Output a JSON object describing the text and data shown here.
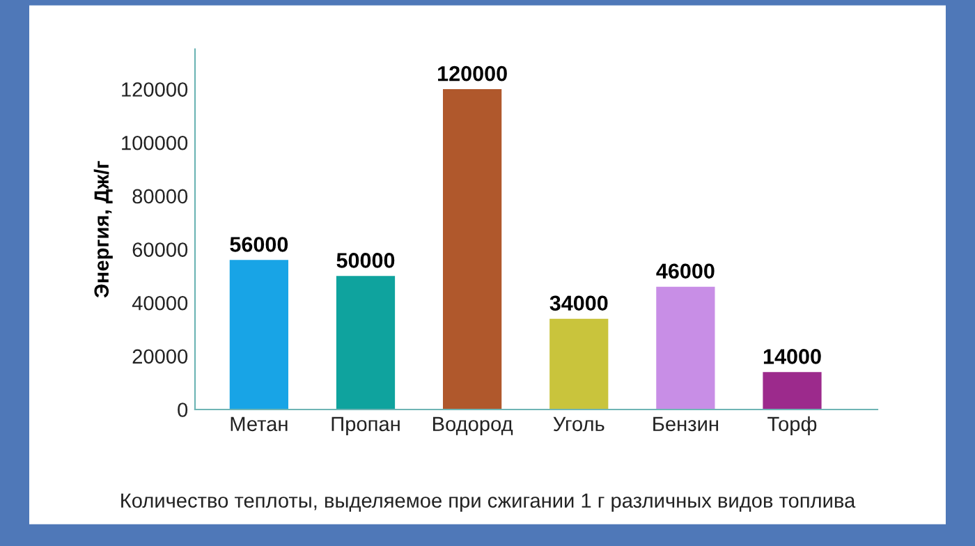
{
  "chart_data": {
    "type": "bar",
    "ylabel": "Энергия, Дж/г",
    "categories": [
      "Метан",
      "Пропан",
      "Водород",
      "Уголь",
      "Бензин",
      "Торф"
    ],
    "values": [
      56000,
      50000,
      120000,
      34000,
      46000,
      14000
    ],
    "colors": [
      "#18a4e6",
      "#0fa39e",
      "#b0582c",
      "#c9c43c",
      "#c88ee6",
      "#9c2a8c"
    ],
    "data_labels": true,
    "ylim": [
      0,
      135000
    ],
    "yticks": [
      0,
      20000,
      40000,
      60000,
      80000,
      100000,
      120000
    ],
    "grid": false,
    "legend": false,
    "annotations": [
      "Количество теплоты, выделяемое при сжигании 1 г различных видов топлива"
    ]
  }
}
